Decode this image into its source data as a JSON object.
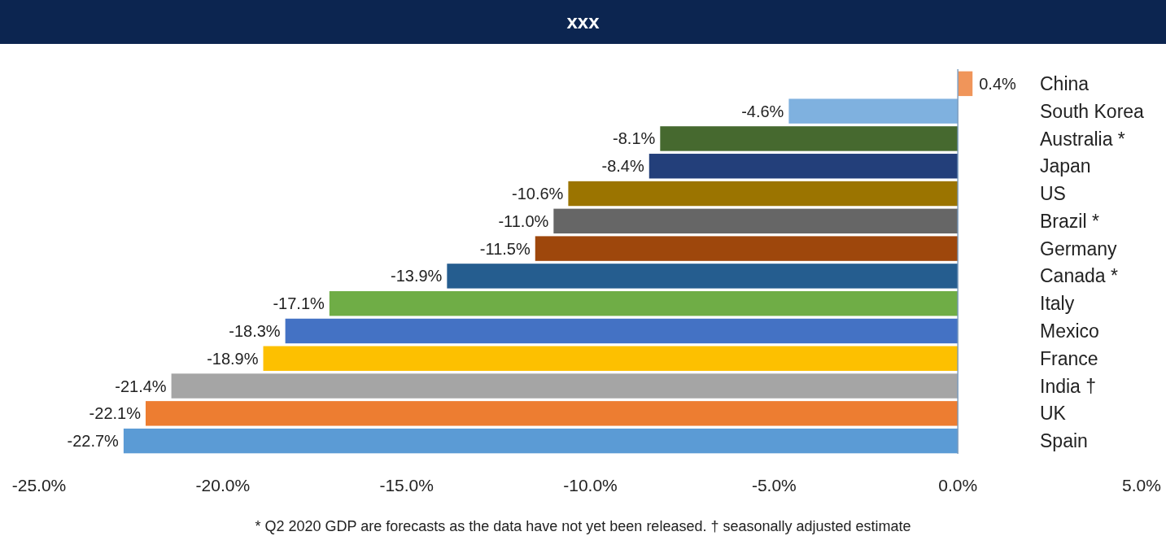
{
  "chart_data": {
    "type": "bar",
    "orientation": "horizontal",
    "title": "xxx",
    "categories": [
      "China",
      "South Korea",
      "Australia *",
      "Japan",
      "US",
      "Brazil *",
      "Germany",
      "Canada *",
      "Italy",
      "Mexico",
      "France",
      "India †",
      "UK",
      "Spain"
    ],
    "values": [
      0.4,
      -4.6,
      -8.1,
      -8.4,
      -10.6,
      -11.0,
      -11.5,
      -13.9,
      -17.1,
      -18.3,
      -18.9,
      -21.4,
      -22.1,
      -22.7
    ],
    "value_labels": [
      "0.4%",
      "-4.6%",
      "-8.1%",
      "-8.4%",
      "-10.6%",
      "-11.0%",
      "-11.5%",
      "-13.9%",
      "-17.1%",
      "-18.3%",
      "-18.9%",
      "-21.4%",
      "-22.1%",
      "-22.7%"
    ],
    "colors": [
      "#f0955a",
      "#7fb1df",
      "#46692f",
      "#233f7a",
      "#9b7400",
      "#666666",
      "#9e470c",
      "#255d8f",
      "#6fad46",
      "#4472c4",
      "#fdc000",
      "#a5a5a5",
      "#ed7d31",
      "#5b9bd5"
    ],
    "xlim": [
      -25,
      5
    ],
    "xticks": [
      {
        "value": -25,
        "label": "-25.0%"
      },
      {
        "value": -20,
        "label": "-20.0%"
      },
      {
        "value": -15,
        "label": "-15.0%"
      },
      {
        "value": -10,
        "label": "-10.0%"
      },
      {
        "value": -5,
        "label": "-5.0%"
      },
      {
        "value": 0,
        "label": "0.0%"
      },
      {
        "value": 5,
        "label": "5.0%"
      }
    ],
    "grid": false,
    "ref_lines": [
      {
        "axis": "x",
        "value": 0,
        "color": "#7f9fc0"
      }
    ],
    "annotations": [
      "* Q2 2020 GDP are forecasts as the data have not yet been released.  † seasonally adjusted estimate"
    ]
  }
}
